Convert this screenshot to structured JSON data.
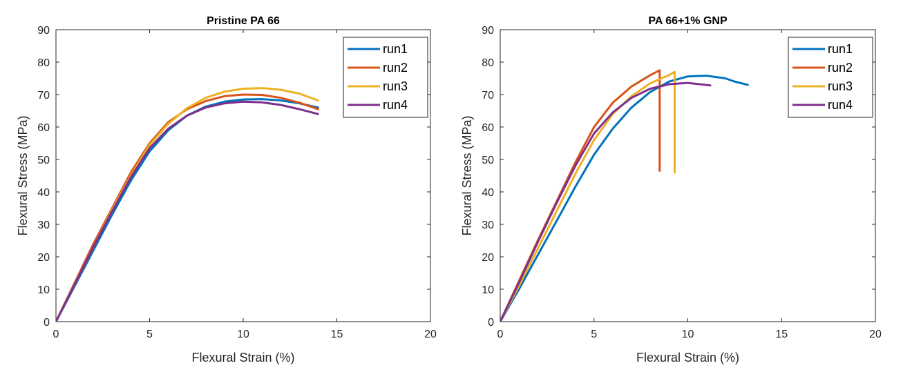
{
  "chart_data": [
    {
      "type": "line",
      "title": "Pristine PA 66",
      "xlabel": "Flexural Strain (%)",
      "ylabel": "Flexural Stress (MPa)",
      "xlim": [
        0,
        20
      ],
      "ylim": [
        0,
        90
      ],
      "xticks": [
        0,
        5,
        10,
        15,
        20
      ],
      "yticks": [
        0,
        10,
        20,
        30,
        40,
        50,
        60,
        70,
        80,
        90
      ],
      "grid": false,
      "legend_position": "top-right",
      "series": [
        {
          "name": "run1",
          "color": "#0072BD",
          "x": [
            0,
            1,
            2,
            3,
            4,
            5,
            6,
            7,
            8,
            9,
            10,
            11,
            12,
            13,
            14
          ],
          "y": [
            0,
            11,
            22,
            33,
            43.5,
            52.5,
            59,
            63.5,
            66.3,
            67.8,
            68.5,
            68.6,
            68.2,
            67.3,
            66
          ]
        },
        {
          "name": "run2",
          "color": "#D95319",
          "x": [
            0,
            1,
            2,
            3,
            4,
            5,
            6,
            7,
            8,
            9,
            10,
            11,
            12,
            13,
            14
          ],
          "y": [
            0,
            12,
            24,
            35,
            46,
            55,
            61.5,
            65.5,
            68,
            69.5,
            70,
            69.9,
            69,
            67.5,
            65.5
          ]
        },
        {
          "name": "run3",
          "color": "#EDB120",
          "x": [
            0,
            1,
            2,
            3,
            4,
            5,
            6,
            7,
            8,
            9,
            10,
            11,
            12,
            13,
            14
          ],
          "y": [
            0,
            11.5,
            23,
            34.5,
            45,
            54.5,
            61,
            65.8,
            69,
            70.9,
            71.8,
            72,
            71.5,
            70.3,
            68.2
          ]
        },
        {
          "name": "run4",
          "color": "#7E2F8E",
          "x": [
            0,
            1,
            2,
            3,
            4,
            5,
            6,
            7,
            8,
            9,
            10,
            11,
            12,
            13,
            14
          ],
          "y": [
            0,
            11.5,
            23,
            34,
            44.5,
            53.5,
            59.5,
            63.5,
            66,
            67.3,
            67.8,
            67.6,
            66.8,
            65.5,
            64
          ]
        }
      ]
    },
    {
      "type": "line",
      "title": "PA 66+1% GNP",
      "xlabel": "Flexural Strain (%)",
      "ylabel": "Flexural Stress (MPa)",
      "xlim": [
        0,
        20
      ],
      "ylim": [
        0,
        90
      ],
      "xticks": [
        0,
        5,
        10,
        15,
        20
      ],
      "yticks": [
        0,
        10,
        20,
        30,
        40,
        50,
        60,
        70,
        80,
        90
      ],
      "grid": false,
      "legend_position": "top-right",
      "series": [
        {
          "name": "run1",
          "color": "#0072BD",
          "x": [
            0,
            1,
            2,
            3,
            4,
            5,
            6,
            7,
            8,
            9,
            10,
            11,
            12,
            12.5,
            13.2
          ],
          "y": [
            0,
            10,
            20.5,
            31,
            41.5,
            51.5,
            59.5,
            66,
            70.8,
            74,
            75.6,
            75.8,
            75,
            74,
            73
          ]
        },
        {
          "name": "run2",
          "color": "#D95319",
          "x": [
            0,
            1,
            2,
            3,
            4,
            5,
            6,
            7,
            8,
            8.5,
            8.5
          ],
          "y": [
            0,
            12.5,
            25,
            37,
            49,
            60,
            67.5,
            72.5,
            76,
            77.5,
            46.5
          ]
        },
        {
          "name": "run3",
          "color": "#EDB120",
          "x": [
            0,
            1,
            2,
            3,
            4,
            5,
            6,
            7,
            8,
            9,
            9.3,
            9.3
          ],
          "y": [
            0,
            11,
            22.5,
            34,
            45.5,
            56,
            64,
            69.5,
            73.5,
            76,
            77,
            46
          ]
        },
        {
          "name": "run4",
          "color": "#7E2F8E",
          "x": [
            0,
            1,
            2,
            3,
            4,
            5,
            6,
            7,
            8,
            9,
            10,
            11.2
          ],
          "y": [
            0,
            12,
            24.5,
            36.5,
            48,
            58,
            64.5,
            69,
            71.8,
            73.2,
            73.6,
            72.8
          ]
        }
      ]
    }
  ]
}
